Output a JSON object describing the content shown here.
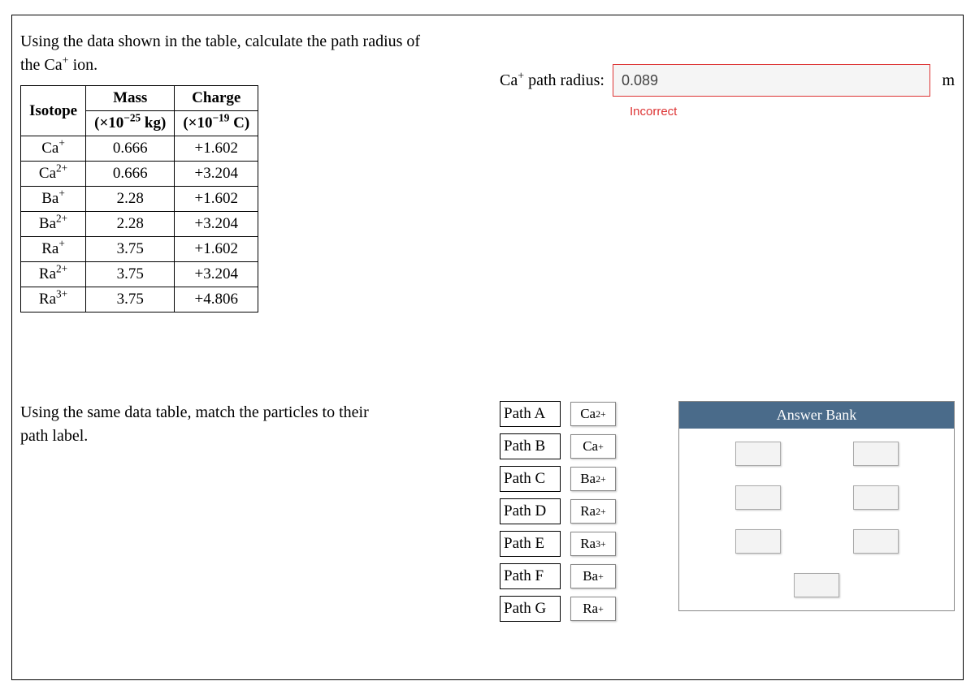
{
  "question1": {
    "prompt_line1": "Using the data shown in the table, calculate the path radius of",
    "prompt_line2_prefix": "the Ca",
    "prompt_line2_sup": "+",
    "prompt_line2_suffix": " ion."
  },
  "isotope_table": {
    "headers": {
      "isotope": "Isotope",
      "mass_line1": "Mass",
      "mass_line2_prefix": "(×10",
      "mass_line2_sup": "−25",
      "mass_line2_suffix": " kg)",
      "charge_line1": "Charge",
      "charge_line2_prefix": "(×10",
      "charge_line2_sup": "−19",
      "charge_line2_suffix": " C)"
    },
    "rows": [
      {
        "iso_base": "Ca",
        "iso_sup": "+",
        "mass": "0.666",
        "charge": "+1.602"
      },
      {
        "iso_base": "Ca",
        "iso_sup": "2+",
        "mass": "0.666",
        "charge": "+3.204"
      },
      {
        "iso_base": "Ba",
        "iso_sup": "+",
        "mass": "2.28",
        "charge": "+1.602"
      },
      {
        "iso_base": "Ba",
        "iso_sup": "2+",
        "mass": "2.28",
        "charge": "+3.204"
      },
      {
        "iso_base": "Ra",
        "iso_sup": "+",
        "mass": "3.75",
        "charge": "+1.602"
      },
      {
        "iso_base": "Ra",
        "iso_sup": "2+",
        "mass": "3.75",
        "charge": "+3.204"
      },
      {
        "iso_base": "Ra",
        "iso_sup": "3+",
        "mass": "3.75",
        "charge": "+4.806"
      }
    ]
  },
  "answer1": {
    "label_base": "Ca",
    "label_sup": "+",
    "label_suffix": " path radius:",
    "value": "0.089",
    "unit": "m",
    "feedback": "Incorrect",
    "feedback_color": "#d33",
    "input_border_color": "#d33",
    "input_bg": "#f5f5f5"
  },
  "question2": {
    "prompt_line1": "Using the same data table, match the particles to their",
    "prompt_line2": "path label."
  },
  "paths": [
    {
      "label": "Path A",
      "ion_base": "Ca",
      "ion_sup": "2+"
    },
    {
      "label": "Path B",
      "ion_base": "Ca",
      "ion_sup": "+"
    },
    {
      "label": "Path C",
      "ion_base": "Ba",
      "ion_sup": "2+"
    },
    {
      "label": "Path D",
      "ion_base": "Ra",
      "ion_sup": "2+"
    },
    {
      "label": "Path E",
      "ion_base": "Ra",
      "ion_sup": "3+"
    },
    {
      "label": "Path F",
      "ion_base": "Ba",
      "ion_sup": "+"
    },
    {
      "label": "Path G",
      "ion_base": "Ra",
      "ion_sup": "+"
    }
  ],
  "answer_bank": {
    "title": "Answer Bank",
    "header_bg": "#4a6b8a",
    "header_color": "#ffffff",
    "tile_count": 7
  }
}
